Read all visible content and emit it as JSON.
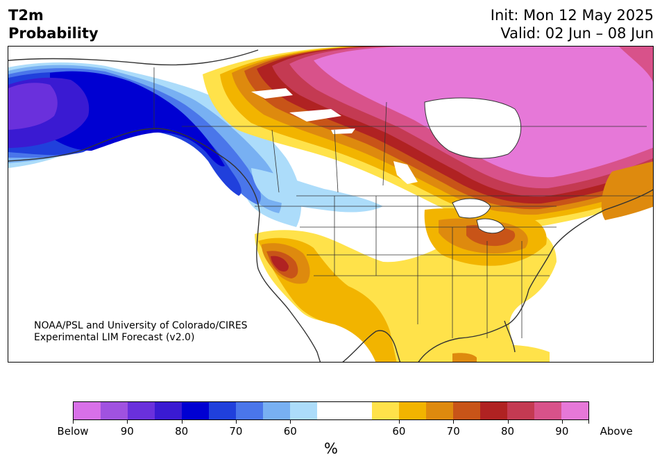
{
  "title": {
    "left_line1": "T2m",
    "left_line2": "Probability",
    "init": "Init: Mon 12 May 2025",
    "valid": "Valid: 02 Jun – 08 Jun"
  },
  "credit": {
    "line1": "NOAA/PSL and University of Colorado/CIRES",
    "line2": "Experimental LIM Forecast (v2.0)"
  },
  "colorbar": {
    "unit": "%",
    "colors": [
      "#d870e8",
      "#a052e0",
      "#6a30dc",
      "#3a1ad2",
      "#0000d2",
      "#2040dc",
      "#4a76ea",
      "#78b0f2",
      "#acdcfa",
      "#ffffff",
      "#ffe24a",
      "#f2b400",
      "#de8a0e",
      "#c85418",
      "#b02222",
      "#c43a52",
      "#d8528a",
      "#e678d8"
    ],
    "labels": [
      "Below",
      "90",
      "80",
      "70",
      "60",
      "60",
      "70",
      "80",
      "90",
      "Above"
    ]
  },
  "map": {
    "region": "North America",
    "background": "#ffffff",
    "border_color": "#333333"
  }
}
